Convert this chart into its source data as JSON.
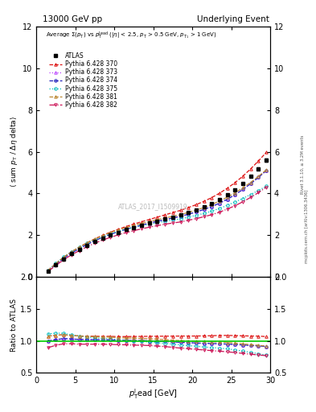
{
  "title_left": "13000 GeV pp",
  "title_right": "Underlying Event",
  "annotation": "ATLAS_2017_I1509919",
  "ylabel_main": "⟨ sum p_T / Δη delta⟩",
  "ylabel_ratio": "Ratio to ATLAS",
  "xlabel": "p_T^lead [GeV]",
  "right_label1": "Rivet 3.1.10, ≥ 3.2M events",
  "right_label2": "mcplots.cern.ch [arXiv:1306.3436]",
  "series": [
    {
      "label": "ATLAS",
      "color": "black",
      "marker": "s",
      "linestyle": "none",
      "lw": 1.0,
      "filled": true
    },
    {
      "label": "Pythia 6.428 370",
      "color": "#dd1111",
      "marker": "^",
      "linestyle": "--",
      "lw": 1.0,
      "filled": false
    },
    {
      "label": "Pythia 6.428 373",
      "color": "#bb44ff",
      "marker": "^",
      "linestyle": ":",
      "lw": 1.0,
      "filled": false
    },
    {
      "label": "Pythia 6.428 374",
      "color": "#2222bb",
      "marker": "o",
      "linestyle": "--",
      "lw": 1.0,
      "filled": false
    },
    {
      "label": "Pythia 6.428 375",
      "color": "#00bbbb",
      "marker": "o",
      "linestyle": ":",
      "lw": 1.0,
      "filled": false
    },
    {
      "label": "Pythia 6.428 381",
      "color": "#bb8833",
      "marker": "^",
      "linestyle": "--",
      "lw": 1.0,
      "filled": false
    },
    {
      "label": "Pythia 6.428 382",
      "color": "#cc1155",
      "marker": "v",
      "linestyle": "-.",
      "lw": 1.0,
      "filled": false
    }
  ],
  "xdata": [
    1.5,
    2.5,
    3.5,
    4.5,
    5.5,
    6.5,
    7.5,
    8.5,
    9.5,
    10.5,
    11.5,
    12.5,
    13.5,
    14.5,
    15.5,
    16.5,
    17.5,
    18.5,
    19.5,
    20.5,
    21.5,
    22.5,
    23.5,
    24.5,
    25.5,
    26.5,
    27.5,
    28.5,
    29.5
  ],
  "atlas_y": [
    0.28,
    0.58,
    0.85,
    1.1,
    1.32,
    1.52,
    1.7,
    1.86,
    2.0,
    2.14,
    2.26,
    2.37,
    2.47,
    2.57,
    2.67,
    2.77,
    2.87,
    2.97,
    3.09,
    3.22,
    3.36,
    3.52,
    3.7,
    3.92,
    4.18,
    4.48,
    4.82,
    5.18,
    5.6
  ],
  "atlas_yerr": [
    0.01,
    0.01,
    0.01,
    0.01,
    0.01,
    0.01,
    0.01,
    0.01,
    0.01,
    0.01,
    0.01,
    0.01,
    0.01,
    0.01,
    0.01,
    0.01,
    0.01,
    0.01,
    0.02,
    0.02,
    0.02,
    0.02,
    0.03,
    0.03,
    0.04,
    0.04,
    0.05,
    0.06,
    0.07
  ],
  "series_y": [
    [
      0.3,
      0.63,
      0.93,
      1.19,
      1.42,
      1.63,
      1.82,
      1.99,
      2.14,
      2.28,
      2.41,
      2.53,
      2.64,
      2.75,
      2.86,
      2.97,
      3.08,
      3.19,
      3.32,
      3.46,
      3.62,
      3.8,
      4.01,
      4.25,
      4.52,
      4.83,
      5.18,
      5.56,
      5.97
    ],
    [
      0.28,
      0.59,
      0.88,
      1.13,
      1.35,
      1.55,
      1.73,
      1.89,
      2.03,
      2.16,
      2.28,
      2.38,
      2.48,
      2.57,
      2.66,
      2.74,
      2.82,
      2.9,
      3.0,
      3.11,
      3.23,
      3.37,
      3.53,
      3.72,
      3.94,
      4.19,
      4.47,
      4.77,
      5.1
    ],
    [
      0.28,
      0.59,
      0.88,
      1.13,
      1.35,
      1.55,
      1.73,
      1.89,
      2.03,
      2.16,
      2.28,
      2.38,
      2.48,
      2.57,
      2.66,
      2.74,
      2.82,
      2.9,
      3.0,
      3.11,
      3.23,
      3.37,
      3.53,
      3.72,
      3.94,
      4.19,
      4.47,
      4.77,
      5.1
    ],
    [
      0.31,
      0.65,
      0.95,
      1.2,
      1.42,
      1.61,
      1.78,
      1.93,
      2.06,
      2.18,
      2.28,
      2.37,
      2.45,
      2.52,
      2.59,
      2.66,
      2.72,
      2.78,
      2.86,
      2.95,
      3.04,
      3.15,
      3.28,
      3.43,
      3.59,
      3.76,
      3.95,
      4.14,
      4.35
    ],
    [
      0.3,
      0.63,
      0.93,
      1.19,
      1.42,
      1.62,
      1.81,
      1.97,
      2.12,
      2.24,
      2.36,
      2.47,
      2.56,
      2.65,
      2.74,
      2.82,
      2.9,
      2.98,
      3.09,
      3.2,
      3.32,
      3.47,
      3.63,
      3.82,
      4.03,
      4.27,
      4.53,
      4.82,
      5.13
    ],
    [
      0.25,
      0.54,
      0.81,
      1.05,
      1.25,
      1.44,
      1.61,
      1.76,
      1.89,
      2.01,
      2.12,
      2.21,
      2.3,
      2.38,
      2.45,
      2.52,
      2.58,
      2.63,
      2.71,
      2.79,
      2.88,
      2.98,
      3.1,
      3.25,
      3.41,
      3.6,
      3.81,
      4.04,
      4.3
    ]
  ],
  "ylim_main": [
    0,
    12
  ],
  "ylim_ratio": [
    0.5,
    2.0
  ],
  "xlim": [
    0,
    30
  ],
  "yticks_main": [
    0,
    2,
    4,
    6,
    8,
    10,
    12
  ],
  "yticks_ratio": [
    0.5,
    1.0,
    1.5,
    2.0
  ],
  "xticks": [
    0,
    5,
    10,
    15,
    20,
    25,
    30
  ],
  "ratio_line_color": "#00cc00",
  "background_color": "#ffffff"
}
